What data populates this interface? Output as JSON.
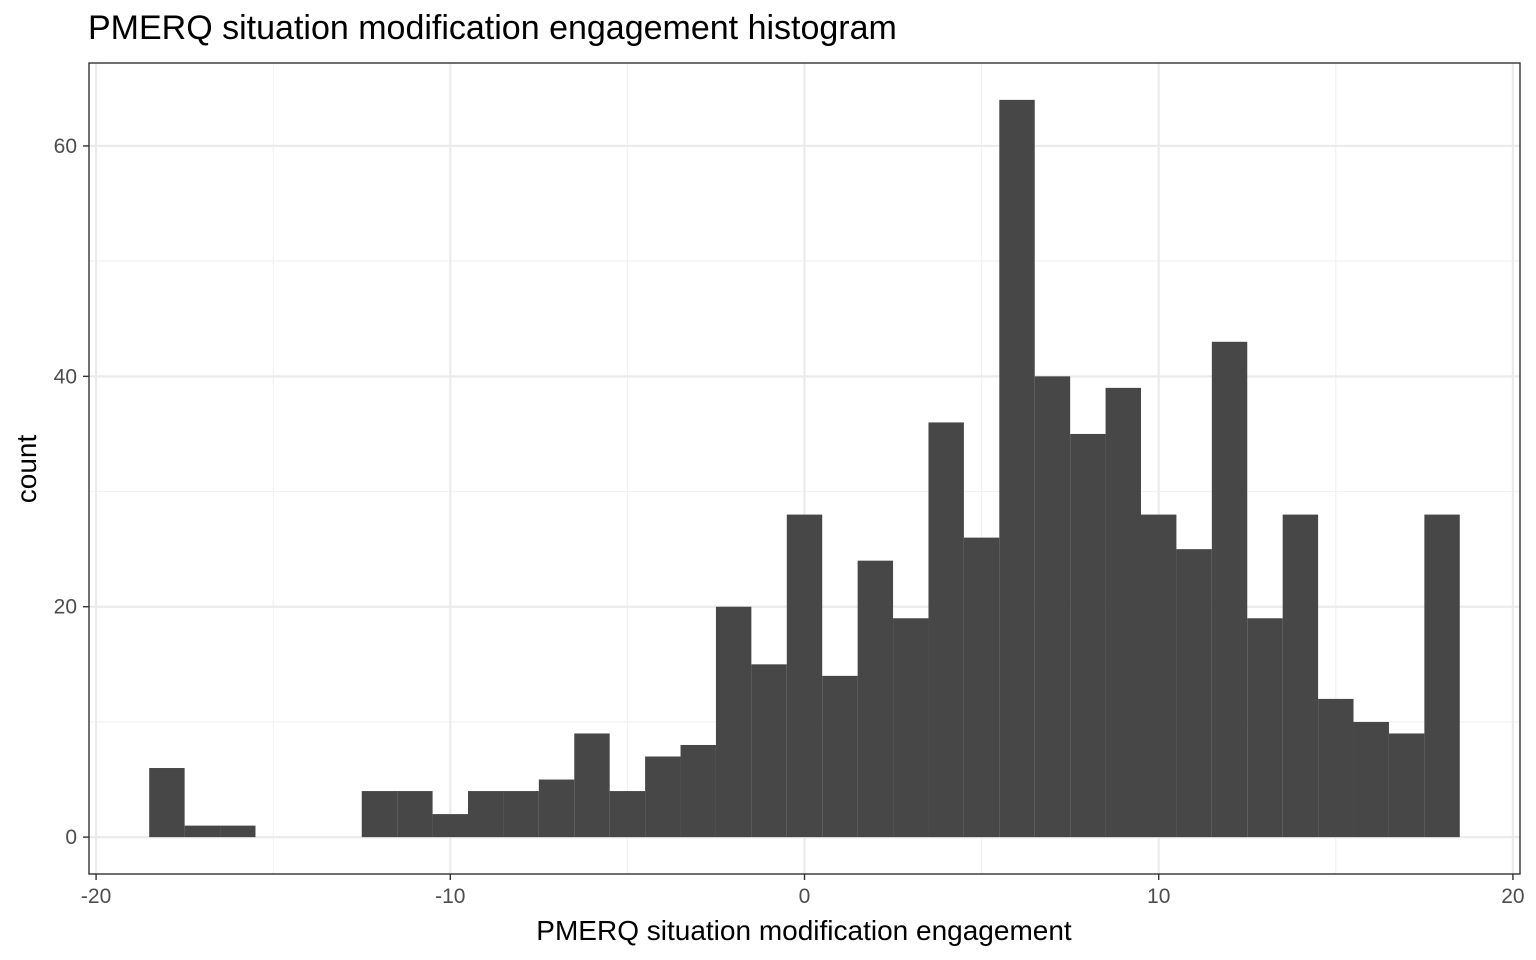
{
  "chart_data": {
    "type": "bar",
    "title": "PMERQ situation modification engagement histogram",
    "xlabel": "PMERQ situation modification engagement",
    "ylabel": "count",
    "xlim": [
      -20.2,
      20.2
    ],
    "ylim": [
      -3.2,
      67.2
    ],
    "x_ticks": [
      -20,
      -10,
      0,
      10,
      20
    ],
    "x_tick_labels": [
      "-20",
      "-10",
      "0",
      "10",
      "20"
    ],
    "y_ticks": [
      0,
      20,
      40,
      60
    ],
    "y_tick_labels": [
      "0",
      "20",
      "40",
      "60"
    ],
    "grid": true,
    "bin_width": 1,
    "bin_centers": [
      -18,
      -17,
      -16,
      -15,
      -14,
      -13,
      -12,
      -11,
      -10,
      -9,
      -8,
      -7,
      -6,
      -5,
      -4,
      -3,
      -2,
      -1,
      0,
      1,
      2,
      3,
      4,
      5,
      6,
      7,
      8,
      9,
      10,
      11,
      12,
      13,
      14,
      15,
      16,
      17,
      18
    ],
    "values": [
      6,
      1,
      1,
      0,
      0,
      0,
      4,
      4,
      2,
      4,
      4,
      5,
      9,
      4,
      7,
      8,
      20,
      15,
      28,
      14,
      24,
      19,
      36,
      26,
      64,
      40,
      35,
      39,
      28,
      25,
      43,
      19,
      28,
      12,
      10,
      9,
      28
    ],
    "colors": {
      "bar": "#474747",
      "panel_border": "#333333",
      "grid_major": "#ebebeb",
      "grid_minor": "#f2f2f2"
    }
  }
}
